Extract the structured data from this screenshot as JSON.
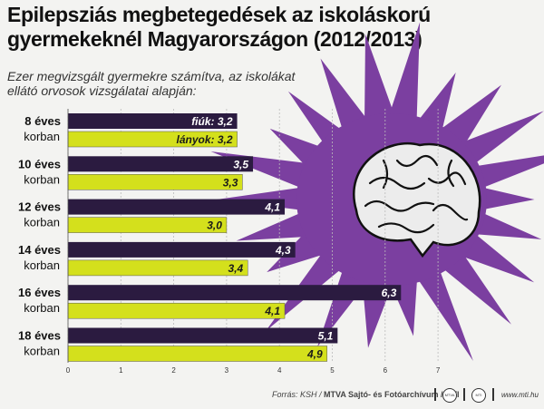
{
  "title": "Epilepsziás megbetegedések az iskoláskorú gyermekeknél Magyarországon (2012/2013)",
  "subtitle": "Ezer megvizsgált gyermekre számítva, az iskolákat ellátó orvosok vizsgálatai alapján:",
  "footer": {
    "source_prefix": "Forrás: KSH / ",
    "source_bold": "MTVA Sajtó- és Fotóarchívum / MTI",
    "logo1": "MTVA",
    "logo2": "MTI",
    "url": "www.mti.hu"
  },
  "colors": {
    "boys": "#2b1b40",
    "girls": "#d4e01c",
    "splash": "#7b3fa0",
    "background": "#f3f3f1"
  },
  "chart_data": {
    "type": "bar",
    "orientation": "horizontal",
    "categories": [
      [
        "8 éves",
        "korban"
      ],
      [
        "10 éves",
        "korban"
      ],
      [
        "12 éves",
        "korban"
      ],
      [
        "14 éves",
        "korban"
      ],
      [
        "16 éves",
        "korban"
      ],
      [
        "18 éves",
        "korban"
      ]
    ],
    "series": [
      {
        "name": "fiúk",
        "values": [
          3.2,
          3.5,
          4.1,
          4.3,
          6.3,
          5.1
        ],
        "labels": [
          "3,2",
          "3,5",
          "4,1",
          "4,3",
          "6,3",
          "5,1"
        ]
      },
      {
        "name": "lányok",
        "values": [
          3.2,
          3.3,
          3.0,
          3.4,
          4.1,
          4.9
        ],
        "labels": [
          "3,2",
          "3,3",
          "3,0",
          "3,4",
          "4,1",
          "4,9"
        ]
      }
    ],
    "xticks": [
      0,
      1,
      2,
      3,
      4,
      5,
      6,
      7
    ],
    "xlim": [
      0,
      7
    ],
    "grid": true,
    "legend": "inline labels on first category"
  }
}
